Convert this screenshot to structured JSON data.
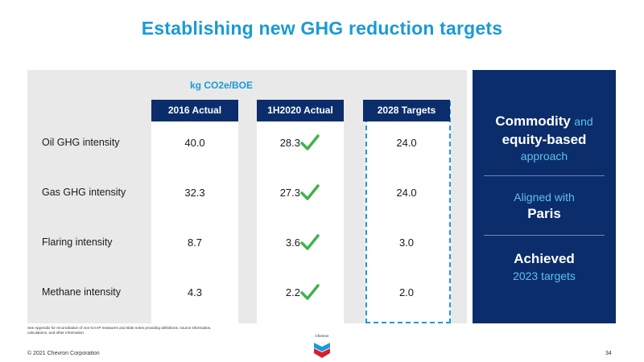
{
  "title": "Establishing new GHG reduction targets",
  "table": {
    "unit_label": "kg CO2e/BOE",
    "columns": [
      "2016 Actual",
      "1H2020 Actual",
      "2028 Targets"
    ],
    "rows": [
      {
        "label": "Oil GHG intensity",
        "v2016": "40.0",
        "v2020": "28.3",
        "v2028": "24.0"
      },
      {
        "label": "Gas GHG intensity",
        "v2016": "32.3",
        "v2020": "27.3",
        "v2028": "24.0"
      },
      {
        "label": "Flaring intensity",
        "v2016": "8.7",
        "v2020": "3.6",
        "v2028": "3.0"
      },
      {
        "label": "Methane intensity",
        "v2016": "4.3",
        "v2020": "2.2",
        "v2028": "2.0"
      }
    ],
    "check_icon": "check-icon",
    "check_color": "#3cb54a",
    "header_color": "#0b2d6b",
    "accent_color": "#1a9ad6"
  },
  "side_panel": {
    "block1_line1_strong": "Commodity",
    "block1_line1_light": "and",
    "block1_line2": "equity-based",
    "block1_line3": "approach",
    "block2_line1": "Aligned with",
    "block2_line2": "Paris",
    "block3_line1": "Achieved",
    "block3_line2": "2023 targets"
  },
  "footnote": "See Appendix for reconciliation of non-GAAP measures and slide notes providing definitions, source information, calculations, and other information.",
  "logo_text": "Chevron",
  "copyright": "© 2021 Chevron Corporation",
  "page_number": "34"
}
